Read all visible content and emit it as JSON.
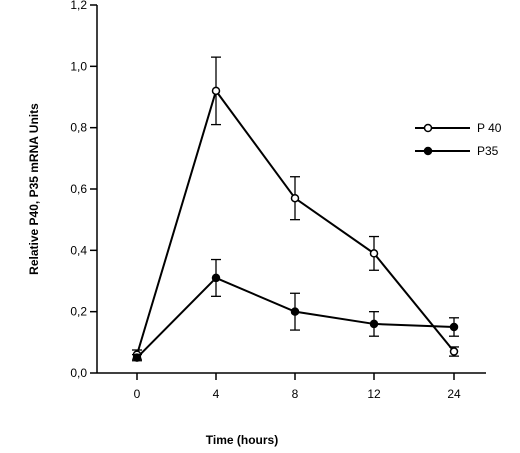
{
  "chart_data": {
    "type": "line",
    "title": "",
    "xlabel": "Time (hours)",
    "ylabel": "Relative P40, P35 mRNA Units",
    "categories": [
      "0",
      "4",
      "8",
      "12",
      "24"
    ],
    "ylim": [
      0,
      1.2
    ],
    "yticks": [
      0.0,
      0.2,
      0.4,
      0.6,
      0.8,
      1.0,
      1.2
    ],
    "ytick_labels": [
      "0,0",
      "0,2",
      "0,4",
      "0,6",
      "0,8",
      "1,0",
      "1,2"
    ],
    "grid": false,
    "legend_position": "right",
    "series": [
      {
        "name": "P 40",
        "marker": "open-circle",
        "values": [
          0.06,
          0.92,
          0.57,
          0.39,
          0.07
        ],
        "errors": [
          0.015,
          0.11,
          0.07,
          0.055,
          0.015
        ]
      },
      {
        "name": "P35",
        "marker": "filled-circle",
        "values": [
          0.05,
          0.31,
          0.2,
          0.16,
          0.15
        ],
        "errors": [
          0.01,
          0.06,
          0.06,
          0.04,
          0.03
        ]
      }
    ]
  }
}
